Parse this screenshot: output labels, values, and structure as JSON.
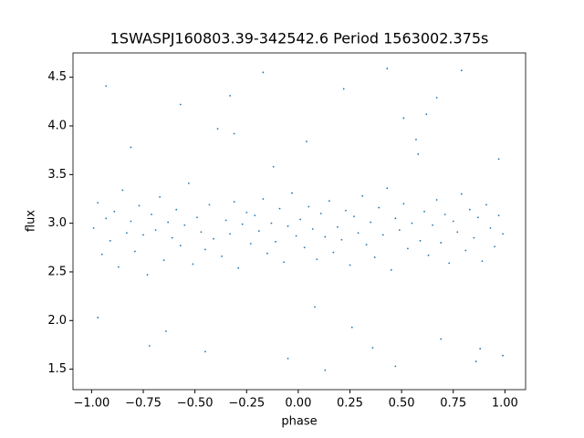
{
  "chart_data": {
    "type": "scatter",
    "title": "1SWASPJ160803.39-342542.6 Period 1563002.375s",
    "x_label": "phase",
    "y_label": "flux",
    "xlim": [
      -1.09,
      1.1
    ],
    "ylim": [
      1.29,
      4.75
    ],
    "xticks": [
      {
        "value": -1.0,
        "label": "−1.00"
      },
      {
        "value": -0.75,
        "label": "−0.75"
      },
      {
        "value": -0.5,
        "label": "−0.50"
      },
      {
        "value": -0.25,
        "label": "−0.25"
      },
      {
        "value": 0.0,
        "label": "0.00"
      },
      {
        "value": 0.25,
        "label": "0.25"
      },
      {
        "value": 0.5,
        "label": "0.50"
      },
      {
        "value": 0.75,
        "label": "0.75"
      },
      {
        "value": 1.0,
        "label": "1.00"
      }
    ],
    "yticks": [
      1.5,
      {
        "value": 2.0,
        "label": "2.0"
      },
      2.5,
      {
        "value": 3.0,
        "label": "3.0"
      },
      3.5,
      {
        "value": 4.0,
        "label": "4.0"
      },
      4.5
    ],
    "grid": false,
    "series": [
      {
        "color": "#1f77b4",
        "x": [
          -0.99,
          -0.97,
          -0.95,
          -0.93,
          -0.91,
          -0.89,
          -0.87,
          -0.85,
          -0.83,
          -0.81,
          -0.79,
          -0.77,
          -0.75,
          -0.73,
          -0.71,
          -0.69,
          -0.67,
          -0.65,
          -0.63,
          -0.61,
          -0.59,
          -0.57,
          -0.55,
          -0.53,
          -0.51,
          -0.49,
          -0.47,
          -0.45,
          -0.43,
          -0.41,
          -0.39,
          -0.37,
          -0.35,
          -0.33,
          -0.31,
          -0.29,
          -0.27,
          -0.25,
          -0.23,
          -0.21,
          -0.19,
          -0.17,
          -0.15,
          -0.13,
          -0.11,
          -0.09,
          -0.07,
          -0.05,
          -0.03,
          -0.01,
          0.01,
          0.03,
          0.05,
          0.07,
          0.09,
          0.11,
          0.13,
          0.15,
          0.17,
          0.19,
          0.21,
          0.23,
          0.25,
          0.27,
          0.29,
          0.31,
          0.33,
          0.35,
          0.37,
          0.39,
          0.41,
          0.43,
          0.45,
          0.47,
          0.49,
          0.51,
          0.53,
          0.55,
          0.57,
          0.59,
          0.61,
          0.63,
          0.65,
          0.67,
          0.69,
          0.71,
          0.73,
          0.75,
          0.77,
          0.79,
          0.81,
          0.83,
          0.85,
          0.87,
          0.89,
          0.91,
          0.93,
          0.95,
          0.97,
          0.99,
          -0.93,
          -0.81,
          -0.72,
          -0.57,
          -0.45,
          -0.33,
          -0.31,
          -0.17,
          -0.05,
          0.04,
          0.13,
          0.22,
          0.36,
          0.43,
          0.47,
          0.58,
          0.62,
          0.67,
          0.69,
          0.79,
          0.86,
          0.97,
          -0.97,
          -0.64,
          -0.12,
          0.08,
          0.26,
          0.51,
          0.88,
          0.99
        ],
        "values": [
          2.95,
          3.21,
          2.68,
          3.05,
          2.82,
          3.12,
          2.55,
          3.34,
          2.9,
          3.02,
          2.71,
          3.18,
          2.88,
          2.47,
          3.09,
          2.93,
          3.27,
          2.62,
          3.01,
          2.85,
          3.14,
          2.77,
          2.98,
          3.41,
          2.58,
          3.06,
          2.91,
          2.73,
          3.19,
          2.84,
          3.97,
          2.66,
          3.03,
          2.89,
          3.22,
          2.54,
          2.99,
          3.11,
          2.79,
          3.08,
          2.92,
          3.25,
          2.69,
          3.0,
          2.81,
          3.15,
          2.6,
          2.97,
          3.31,
          2.87,
          3.04,
          2.75,
          3.17,
          2.94,
          2.63,
          3.1,
          2.86,
          3.23,
          2.7,
          2.96,
          2.83,
          3.13,
          2.57,
          3.07,
          2.9,
          3.28,
          2.78,
          3.01,
          2.65,
          3.16,
          2.88,
          3.36,
          2.52,
          3.05,
          2.93,
          3.2,
          2.74,
          3.0,
          3.86,
          2.82,
          3.12,
          2.67,
          2.98,
          3.24,
          2.8,
          3.09,
          2.59,
          3.02,
          2.91,
          3.3,
          2.72,
          3.14,
          2.85,
          3.06,
          2.61,
          3.19,
          2.95,
          2.76,
          3.08,
          2.89,
          4.41,
          3.78,
          1.74,
          4.22,
          1.68,
          4.31,
          3.92,
          4.55,
          1.61,
          3.84,
          1.49,
          4.38,
          1.72,
          4.59,
          1.53,
          3.71,
          4.12,
          4.29,
          1.81,
          4.57,
          1.58,
          3.66,
          2.03,
          1.89,
          3.58,
          2.14,
          1.93,
          4.08,
          1.71,
          1.64
        ]
      }
    ]
  }
}
